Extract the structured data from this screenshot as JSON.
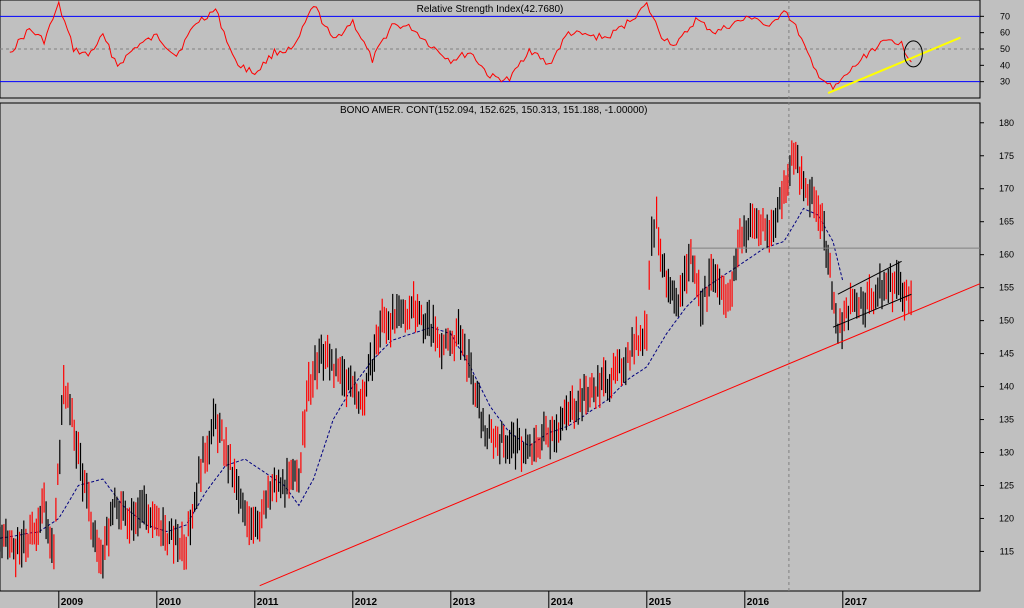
{
  "chart_data": [
    {
      "type": "line",
      "title": "Relative Strength Index(42.7680)",
      "ylim": [
        20,
        80
      ],
      "yticks": [
        30,
        40,
        50,
        60,
        70
      ],
      "levels": {
        "upper": 70,
        "lower": 30,
        "mid": 50
      },
      "series": [
        {
          "color": "#ff0000",
          "x": [
            2008.5,
            2008.7,
            2008.85,
            2009.0,
            2009.15,
            2009.3,
            2009.45,
            2009.6,
            2009.8,
            2010.0,
            2010.2,
            2010.4,
            2010.6,
            2010.8,
            2011.0,
            2011.2,
            2011.4,
            2011.6,
            2011.8,
            2012.0,
            2012.2,
            2012.4,
            2012.6,
            2012.8,
            2013.0,
            2013.2,
            2013.4,
            2013.6,
            2013.8,
            2014.0,
            2014.2,
            2014.4,
            2014.6,
            2014.8,
            2015.0,
            2015.15,
            2015.3,
            2015.5,
            2015.7,
            2015.9,
            2016.1,
            2016.25,
            2016.4,
            2016.55,
            2016.7,
            2016.9,
            2017.1,
            2017.3,
            2017.5,
            2017.6,
            2017.7
          ],
          "y": [
            48,
            62,
            55,
            77,
            50,
            46,
            58,
            40,
            52,
            58,
            46,
            66,
            74,
            42,
            35,
            48,
            50,
            77,
            55,
            67,
            43,
            65,
            63,
            52,
            43,
            48,
            33,
            31,
            50,
            40,
            60,
            58,
            57,
            66,
            77,
            58,
            52,
            68,
            60,
            66,
            70,
            62,
            75,
            60,
            38,
            25,
            38,
            50,
            56,
            53,
            42
          ]
        }
      ],
      "annotations": [
        "yellow-trendline",
        "circle-marker",
        "vertical-dashed-line"
      ]
    },
    {
      "type": "line",
      "title": "BONO AMER. CONT(152.094, 152.625, 150.313, 151.188, -1.00000)",
      "ylim": [
        109,
        183
      ],
      "yticks": [
        115,
        120,
        125,
        130,
        135,
        140,
        145,
        150,
        155,
        160,
        165,
        170,
        175,
        180
      ],
      "xlim": [
        2008.4,
        2018.4
      ],
      "xticks": [
        "2009",
        "2010",
        "2011",
        "2012",
        "2013",
        "2014",
        "2015",
        "2016",
        "2017"
      ],
      "series": [
        {
          "name": "price",
          "color": "#ff0000",
          "x": [
            2008.4,
            2008.6,
            2008.75,
            2008.85,
            2008.95,
            2009.05,
            2009.2,
            2009.35,
            2009.45,
            2009.55,
            2009.7,
            2009.85,
            2010.0,
            2010.15,
            2010.3,
            2010.45,
            2010.6,
            2010.75,
            2010.9,
            2011.05,
            2011.2,
            2011.35,
            2011.45,
            2011.55,
            2011.7,
            2011.85,
            2012.0,
            2012.1,
            2012.3,
            2012.45,
            2012.6,
            2012.8,
            2012.95,
            2013.1,
            2013.25,
            2013.35,
            2013.5,
            2013.7,
            2013.85,
            2013.95,
            2014.1,
            2014.3,
            2014.5,
            2014.7,
            2014.85,
            2015.0,
            2015.05,
            2015.1,
            2015.2,
            2015.3,
            2015.45,
            2015.55,
            2015.7,
            2015.85,
            2015.95,
            2016.1,
            2016.25,
            2016.4,
            2016.5,
            2016.6,
            2016.75,
            2016.85,
            2016.95,
            2017.1,
            2017.25,
            2017.4,
            2017.55,
            2017.65,
            2017.72
          ],
          "y": [
            117,
            115,
            118,
            122,
            115,
            141,
            130,
            118,
            113,
            122,
            120,
            122,
            119,
            117,
            116,
            128,
            135,
            128,
            120,
            120,
            125,
            125,
            127,
            140,
            145,
            142,
            140,
            138,
            150,
            150,
            152,
            149,
            146,
            148,
            139,
            133,
            132,
            131,
            130,
            133,
            134,
            138,
            140,
            142,
            146,
            149,
            164,
            165,
            155,
            152,
            160,
            153,
            157,
            153,
            163,
            165,
            163,
            170,
            176,
            170,
            167,
            160,
            148,
            153,
            153,
            155,
            156,
            154,
            151
          ]
        },
        {
          "name": "moving-average",
          "color": "#000080",
          "x": [
            2008.4,
            2008.8,
            2009.0,
            2009.2,
            2009.45,
            2009.65,
            2009.9,
            2010.1,
            2010.3,
            2010.5,
            2010.7,
            2010.9,
            2011.1,
            2011.3,
            2011.45,
            2011.6,
            2011.8,
            2012.0,
            2012.2,
            2012.4,
            2012.6,
            2012.8,
            2013.0,
            2013.2,
            2013.4,
            2013.6,
            2013.8,
            2014.0,
            2014.2,
            2014.4,
            2014.6,
            2014.8,
            2015.0,
            2015.2,
            2015.4,
            2015.6,
            2015.8,
            2016.0,
            2016.2,
            2016.4,
            2016.6,
            2016.75,
            2016.9,
            2017.0
          ],
          "y": [
            117,
            118,
            120,
            125,
            126,
            122,
            119,
            118,
            119,
            124,
            128,
            129,
            127,
            125,
            122,
            126,
            135,
            140,
            144,
            147,
            148,
            149,
            148,
            143,
            137,
            133,
            131,
            133,
            134,
            136,
            138,
            141,
            143,
            148,
            152,
            155,
            157,
            159,
            161,
            162,
            167,
            166,
            162,
            156
          ]
        }
      ],
      "lines": {
        "trend": {
          "color": "#ff0000",
          "x": [
            2011.05,
            2018.4
          ],
          "y": [
            109.8,
            155.6
          ]
        },
        "resistance": {
          "color": "#808080",
          "x": [
            2015.45,
            2018.4
          ],
          "y": [
            161,
            161
          ]
        },
        "channel_upper": {
          "color": "#000000",
          "x": [
            2016.95,
            2017.6
          ],
          "y": [
            154,
            159
          ]
        },
        "channel_lower": {
          "color": "#000000",
          "x": [
            2016.9,
            2017.7
          ],
          "y": [
            149,
            154
          ]
        },
        "event": {
          "x": 2016.45
        }
      }
    }
  ]
}
